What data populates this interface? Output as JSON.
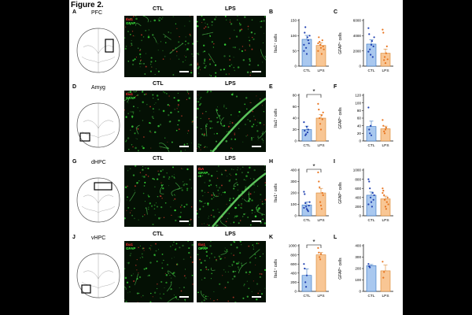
{
  "figure_title": "Figure 2.",
  "rows": [
    {
      "label": "A",
      "region": "PFC",
      "ctl": "CTL",
      "lps": "LPS",
      "ctl_stains": [
        "Iba1",
        "GFAP"
      ],
      "lps_stains": [],
      "charts": [
        {
          "letter": "B",
          "ylabel": "Iba1⁺ cells",
          "ymax": 150,
          "ticks": [
            0,
            50,
            100,
            150
          ],
          "sig": "",
          "ctl_mean": 88,
          "ctl_sem": 13,
          "lps_mean": 68,
          "lps_sem": 9,
          "ctl_pts": [
            70,
            110,
            128,
            60,
            40,
            95,
            85,
            75,
            100,
            50
          ],
          "lps_pts": [
            50,
            95,
            80,
            70,
            60,
            40,
            85,
            65,
            55,
            75
          ]
        },
        {
          "letter": "C",
          "ylabel": "GFAP⁺ cells",
          "ymax": 6000,
          "ticks": [
            0,
            2000,
            4000,
            6000
          ],
          "sig": "",
          "ctl_mean": 2900,
          "ctl_sem": 550,
          "lps_mean": 1700,
          "lps_sem": 550,
          "ctl_pts": [
            5000,
            4200,
            2200,
            1500,
            2800,
            3300,
            1200,
            2600,
            3800,
            1900
          ],
          "lps_pts": [
            4800,
            4400,
            800,
            1200,
            400,
            1700,
            2600,
            900
          ]
        }
      ]
    },
    {
      "label": "D",
      "region": "Amyg",
      "ctl": "CTL",
      "lps": "LPS",
      "ctl_stains": [
        "Iba1",
        "GFAP"
      ],
      "lps_stains": [],
      "charts": [
        {
          "letter": "E",
          "ylabel": "Iba1⁺ cells",
          "ymax": 80,
          "ticks": [
            0,
            20,
            40,
            60,
            80
          ],
          "sig": "*",
          "ctl_mean": 20,
          "ctl_sem": 6,
          "lps_mean": 40,
          "lps_sem": 6,
          "ctl_pts": [
            33,
            18,
            10,
            12,
            25,
            15,
            20
          ],
          "lps_pts": [
            65,
            55,
            40,
            30,
            20,
            45,
            38,
            50
          ]
        },
        {
          "letter": "F",
          "ylabel": "GFAP⁺ cells",
          "ymax": 120,
          "ticks": [
            0,
            20,
            40,
            60,
            80,
            100,
            120
          ],
          "sig": "",
          "ctl_mean": 38,
          "ctl_sem": 14,
          "lps_mean": 32,
          "lps_sem": 7,
          "ctl_pts": [
            88,
            30,
            20,
            40,
            15
          ],
          "lps_pts": [
            55,
            40,
            25,
            20,
            30,
            35
          ]
        }
      ]
    },
    {
      "label": "G",
      "region": "dHPC",
      "ctl": "CTL",
      "lps": "LPS",
      "ctl_stains": [],
      "lps_stains": [
        "IbA",
        "GFAP"
      ],
      "charts": [
        {
          "letter": "H",
          "ylabel": "Iba1⁺ cells",
          "ymax": 400,
          "ticks": [
            0,
            100,
            200,
            300,
            400
          ],
          "sig": "*",
          "ctl_mean": 95,
          "ctl_sem": 25,
          "lps_mean": 200,
          "lps_sem": 40,
          "ctl_pts": [
            210,
            190,
            110,
            80,
            60,
            50,
            40,
            90,
            120,
            70
          ],
          "lps_pts": [
            380,
            300,
            250,
            120,
            90,
            60,
            200,
            180
          ]
        },
        {
          "letter": "I",
          "ylabel": "GFAP⁺ cells",
          "ymax": 1000,
          "ticks": [
            0,
            200,
            400,
            600,
            800,
            1000
          ],
          "sig": "",
          "ctl_mean": 450,
          "ctl_sem": 70,
          "lps_mean": 370,
          "lps_sem": 60,
          "ctl_pts": [
            800,
            750,
            600,
            400,
            300,
            200,
            500,
            350,
            450,
            250
          ],
          "lps_pts": [
            600,
            550,
            450,
            350,
            200,
            150,
            300,
            400,
            250,
            500
          ]
        }
      ]
    },
    {
      "label": "J",
      "region": "vHPC",
      "ctl": "CTL",
      "lps": "LPS",
      "ctl_stains": [
        "Iba1",
        "GFAP"
      ],
      "lps_stains": [
        "Iba1",
        "GFAP"
      ],
      "charts": [
        {
          "letter": "K",
          "ylabel": "Iba1⁺ cells",
          "ymax": 1000,
          "ticks": [
            0,
            200,
            400,
            600,
            800,
            1000
          ],
          "sig": "*",
          "ctl_mean": 350,
          "ctl_sem": 140,
          "lps_mean": 800,
          "lps_sem": 50,
          "ctl_pts": [
            600,
            500,
            200,
            100,
            350
          ],
          "lps_pts": [
            950,
            850,
            750,
            700,
            820
          ]
        },
        {
          "letter": "L",
          "ylabel": "GFAP⁺ cells",
          "ymax": 400,
          "ticks": [
            0,
            100,
            200,
            300,
            400
          ],
          "sig": "",
          "ctl_mean": 225,
          "ctl_sem": 10,
          "lps_mean": 180,
          "lps_sem": 50,
          "ctl_pts": [
            240,
            220,
            210
          ],
          "lps_pts": [
            260,
            120,
            170
          ]
        }
      ]
    }
  ],
  "group_labels": [
    "CTL",
    "LPS"
  ],
  "colors": {
    "ctl_bar": "#a9c8ef",
    "ctl_edge": "#2f6fbf",
    "ctl_dot": "#1f3fb0",
    "lps_bar": "#f8c694",
    "lps_edge": "#d9822b",
    "lps_dot": "#e8741f",
    "stain_red": "#ff3030",
    "stain_green": "#40ff40"
  }
}
